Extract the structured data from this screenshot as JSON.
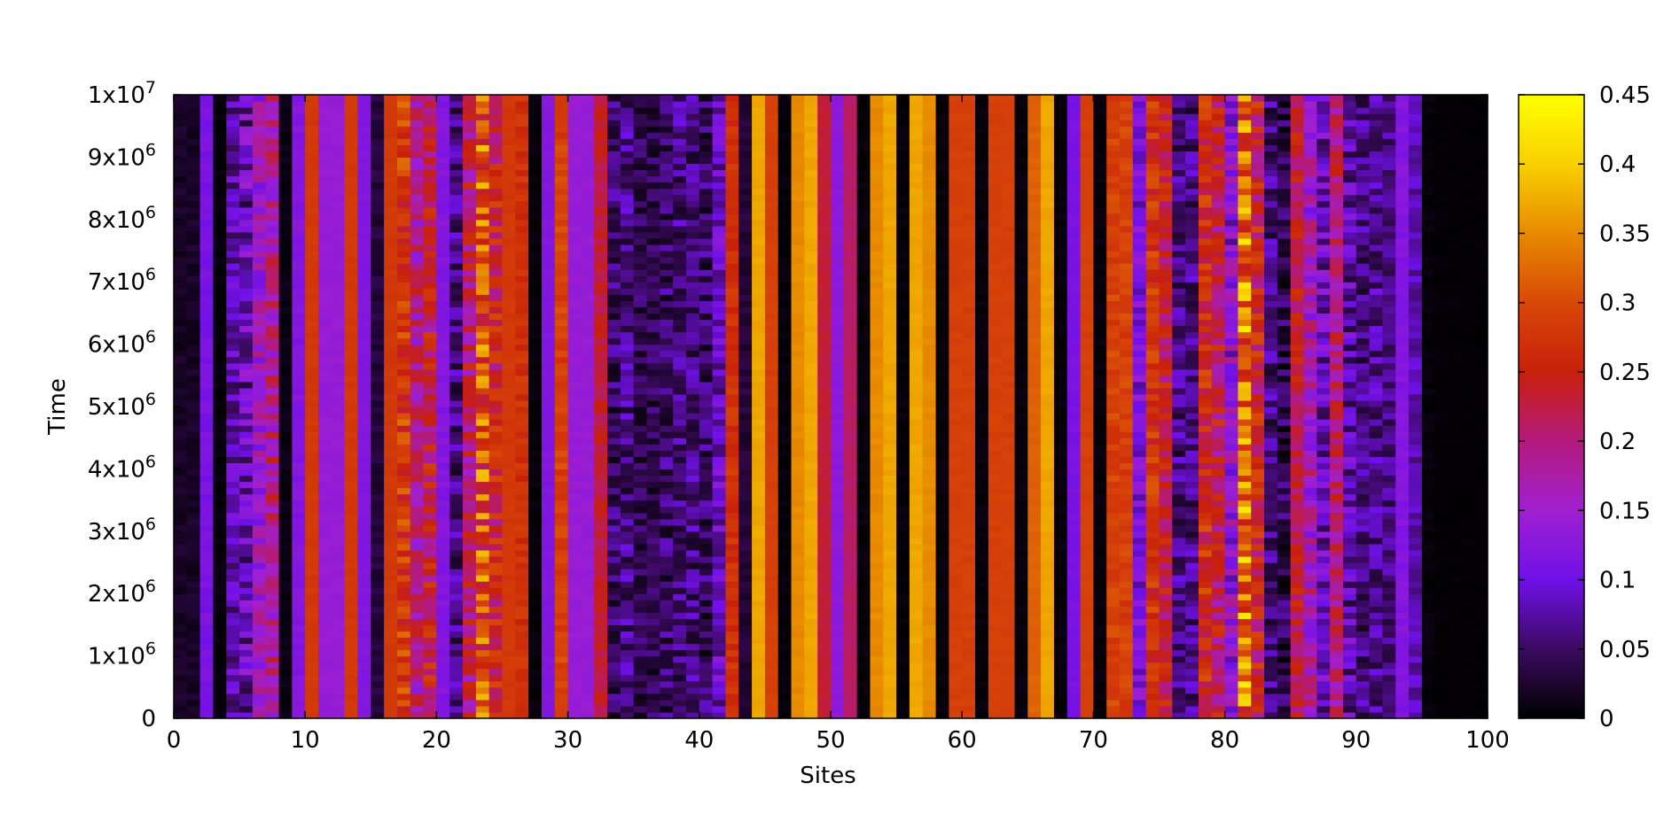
{
  "chart_data": {
    "type": "heatmap",
    "xlabel": "Sites",
    "ylabel": "Time",
    "xlim": [
      0,
      100
    ],
    "ylim": [
      0,
      10000000
    ],
    "x_ticks": [
      "0",
      "10",
      "20",
      "30",
      "40",
      "50",
      "60",
      "70",
      "80",
      "90",
      "100"
    ],
    "y_ticks": [
      {
        "value": 0,
        "mant": "0",
        "exp": ""
      },
      {
        "value": 1000000,
        "mant": "1x10",
        "exp": "6"
      },
      {
        "value": 2000000,
        "mant": "2x10",
        "exp": "6"
      },
      {
        "value": 3000000,
        "mant": "3x10",
        "exp": "6"
      },
      {
        "value": 4000000,
        "mant": "4x10",
        "exp": "6"
      },
      {
        "value": 5000000,
        "mant": "5x10",
        "exp": "6"
      },
      {
        "value": 6000000,
        "mant": "6x10",
        "exp": "6"
      },
      {
        "value": 7000000,
        "mant": "7x10",
        "exp": "6"
      },
      {
        "value": 8000000,
        "mant": "8x10",
        "exp": "6"
      },
      {
        "value": 9000000,
        "mant": "9x10",
        "exp": "6"
      },
      {
        "value": 10000000,
        "mant": "1x10",
        "exp": "7"
      }
    ],
    "colorbar": {
      "range": [
        0,
        0.45
      ],
      "ticks": [
        "0",
        "0.05",
        "0.1",
        "0.15",
        "0.2",
        "0.25",
        "0.3",
        "0.35",
        "0.4",
        "0.45"
      ],
      "palette": [
        "#000000",
        "#3c0a60",
        "#7010e8",
        "#a020d0",
        "#b41a7c",
        "#c8200a",
        "#d84808",
        "#e88a00",
        "#f8d000",
        "#ffff00"
      ]
    },
    "site_mean_values": [
      0.02,
      0.02,
      0.11,
      0.005,
      0.08,
      0.09,
      0.15,
      0.19,
      0.01,
      0.12,
      0.28,
      0.14,
      0.14,
      0.28,
      0.12,
      0.03,
      0.28,
      0.28,
      0.19,
      0.23,
      0.12,
      0.06,
      0.21,
      0.3,
      0.24,
      0.28,
      0.27,
      0.005,
      0.12,
      0.29,
      0.14,
      0.14,
      0.23,
      0.05,
      0.06,
      0.04,
      0.04,
      0.05,
      0.06,
      0.06,
      0.05,
      0.09,
      0.27,
      0.03,
      0.37,
      0.29,
      0.005,
      0.35,
      0.37,
      0.23,
      0.13,
      0.21,
      0.005,
      0.35,
      0.37,
      0.005,
      0.37,
      0.35,
      0.005,
      0.29,
      0.29,
      0.005,
      0.29,
      0.29,
      0.005,
      0.32,
      0.37,
      0.005,
      0.11,
      0.29,
      0.005,
      0.29,
      0.29,
      0.11,
      0.27,
      0.23,
      0.06,
      0.06,
      0.26,
      0.22,
      0.13,
      0.33,
      0.24,
      0.06,
      0.04,
      0.23,
      0.16,
      0.09,
      0.2,
      0.08,
      0.06,
      0.07,
      0.06,
      0.12,
      0.08,
      0.005,
      0.003,
      0.003,
      0.003,
      0.003
    ],
    "site_variability": [
      0.01,
      0.01,
      0.01,
      0.005,
      0.04,
      0.06,
      0.05,
      0.06,
      0.005,
      0.01,
      0.005,
      0.005,
      0.005,
      0.005,
      0.005,
      0.01,
      0.005,
      0.05,
      0.06,
      0.06,
      0.01,
      0.04,
      0.06,
      0.09,
      0.06,
      0.005,
      0.02,
      0.005,
      0.005,
      0.02,
      0.005,
      0.005,
      0.02,
      0.04,
      0.04,
      0.03,
      0.03,
      0.04,
      0.04,
      0.04,
      0.04,
      0.04,
      0.02,
      0.01,
      0.005,
      0.005,
      0.005,
      0.005,
      0.005,
      0.005,
      0.005,
      0.005,
      0.005,
      0.005,
      0.005,
      0.005,
      0.005,
      0.005,
      0.005,
      0.005,
      0.005,
      0.005,
      0.005,
      0.005,
      0.005,
      0.005,
      0.005,
      0.005,
      0.005,
      0.005,
      0.005,
      0.02,
      0.02,
      0.04,
      0.04,
      0.05,
      0.04,
      0.04,
      0.05,
      0.06,
      0.06,
      0.1,
      0.06,
      0.04,
      0.04,
      0.04,
      0.06,
      0.05,
      0.05,
      0.05,
      0.04,
      0.04,
      0.03,
      0.01,
      0.02,
      0.005,
      0.002,
      0.002,
      0.002,
      0.002
    ]
  }
}
